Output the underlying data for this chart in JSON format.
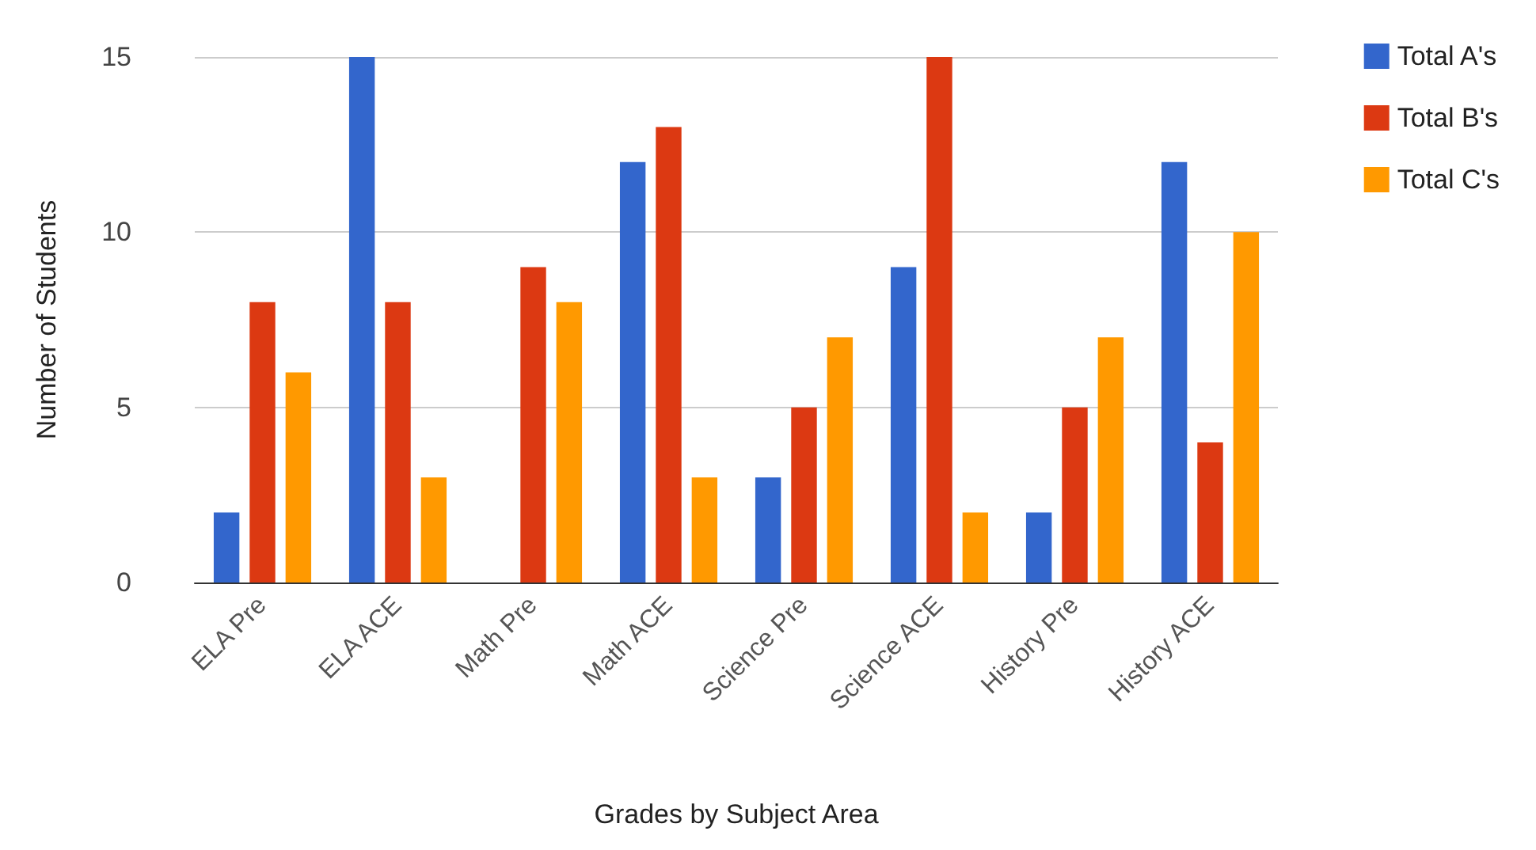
{
  "chart_data": {
    "type": "bar",
    "xlabel": "Grades by Subject Area",
    "ylabel": "Number of Students",
    "categories": [
      "ELA Pre",
      "ELA ACE",
      "Math Pre",
      "Math ACE",
      "Science Pre",
      "Science ACE",
      "History Pre",
      "History ACE"
    ],
    "series": [
      {
        "name": "Total A's",
        "color": "#3366cc",
        "values": [
          2,
          15,
          0,
          12,
          3,
          9,
          2,
          12
        ]
      },
      {
        "name": "Total B's",
        "color": "#dc3912",
        "values": [
          8,
          8,
          9,
          13,
          5,
          15,
          5,
          4
        ]
      },
      {
        "name": "Total C's",
        "color": "#ff9900",
        "values": [
          6,
          3,
          8,
          3,
          7,
          2,
          7,
          10
        ]
      }
    ],
    "ylim": [
      0,
      15
    ],
    "yticks": [
      0,
      5,
      10,
      15
    ],
    "grid": "y",
    "legend": "top right"
  }
}
